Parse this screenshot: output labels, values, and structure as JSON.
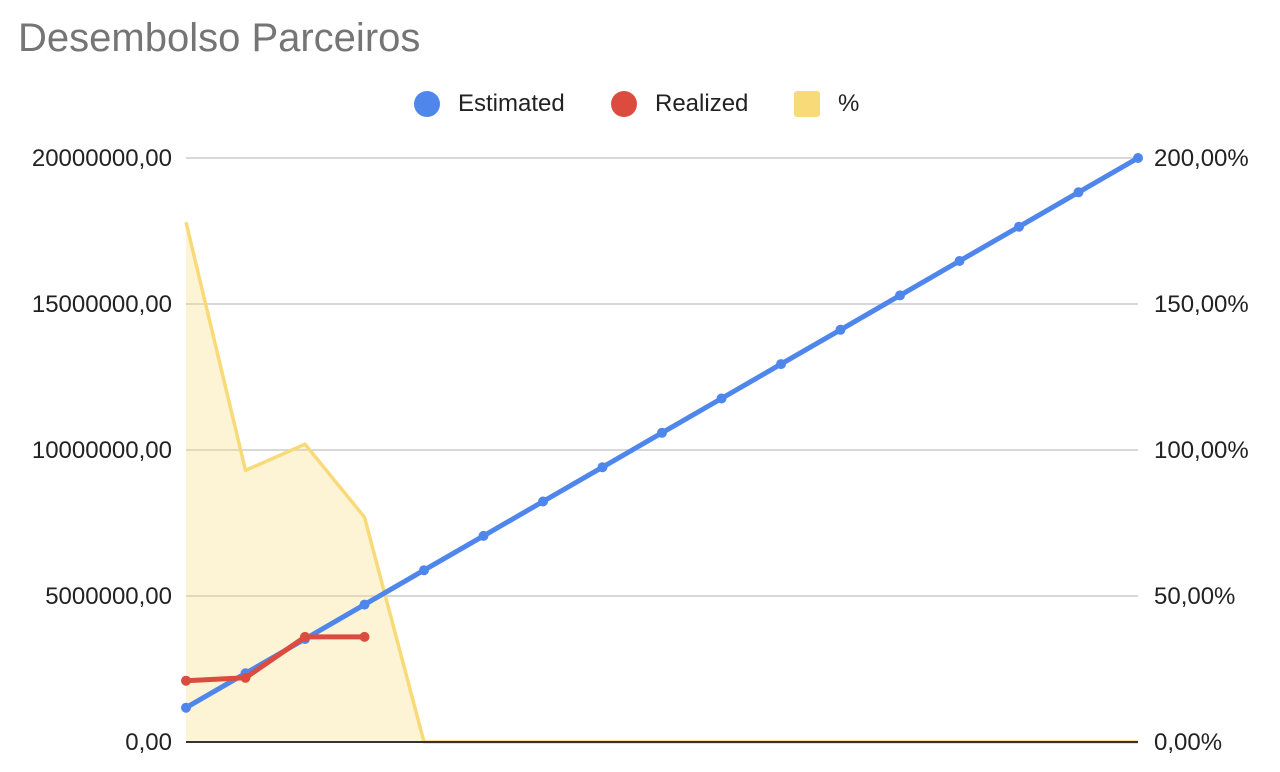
{
  "chart_data": {
    "type": "line",
    "title": "Desembolso Parceiros",
    "legend": "top",
    "grid": true,
    "left_axis": {
      "range": [
        0,
        20000000
      ],
      "ticks": [
        0,
        5000000,
        10000000,
        15000000,
        20000000
      ],
      "tick_labels": [
        "0,00",
        "5000000,00",
        "10000000,00",
        "15000000,00",
        "20000000,00"
      ]
    },
    "right_axis": {
      "range": [
        0,
        2
      ],
      "ticks": [
        0,
        0.5,
        1.0,
        1.5,
        2.0
      ],
      "tick_labels": [
        "0,00%",
        "50,00%",
        "100,00%",
        "150,00%",
        "200,00%"
      ]
    },
    "x_count": 17,
    "series": [
      {
        "name": "Estimated",
        "kind": "line",
        "axis": "left",
        "color": "#4F86EC",
        "values": [
          1176000,
          2353000,
          3529000,
          4706000,
          5882000,
          7059000,
          8235000,
          9412000,
          10588000,
          11765000,
          12941000,
          14118000,
          15294000,
          16471000,
          17647000,
          18824000,
          20000000
        ]
      },
      {
        "name": "Realized",
        "kind": "line",
        "axis": "left",
        "color": "#DB4C3F",
        "values": [
          2100000,
          2200000,
          3600000,
          3600000
        ]
      },
      {
        "name": "%",
        "kind": "area",
        "axis": "right",
        "color": "#F9DA78",
        "values": [
          1.78,
          0.93,
          1.02,
          0.77,
          0,
          0,
          0,
          0,
          0,
          0,
          0,
          0,
          0,
          0,
          0,
          0,
          0
        ]
      }
    ]
  }
}
